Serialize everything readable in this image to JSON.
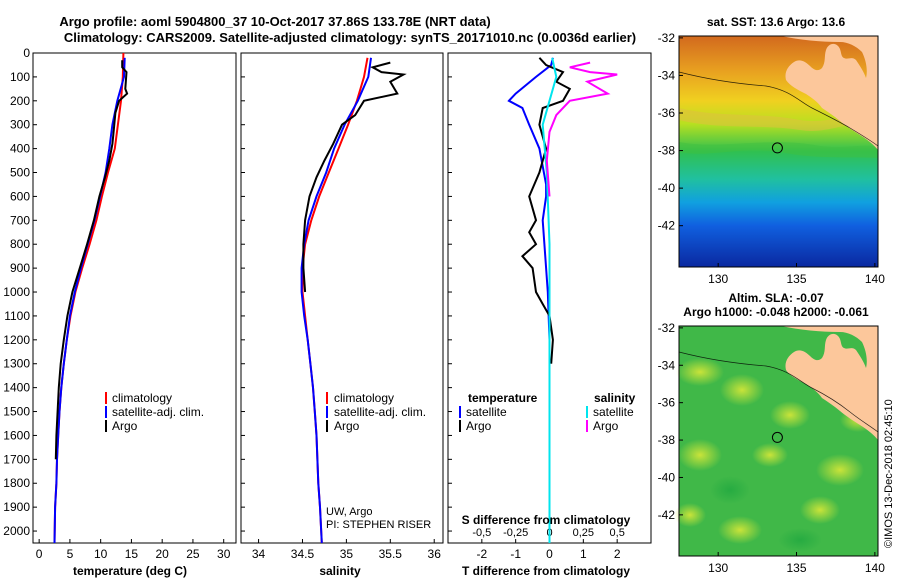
{
  "title": {
    "line1": "Argo profile: aoml 5904800_37 10-Oct-2017 37.86S 133.78E (NRT data)",
    "line2": "Climatology: CARS2009. Satellite-adjusted climatology: synTS_20171010.nc (0.0036d earlier)"
  },
  "colors": {
    "climatology": "#ff0000",
    "satellite": "#0000ff",
    "argo": "#000000",
    "satellite_s": "#00e5ee",
    "argo_s": "#ff00ff"
  },
  "chart_data": [
    {
      "type": "line",
      "id": "temperature",
      "xlabel": "temperature (deg C)",
      "ylabel": "",
      "xlim": [
        -1,
        32
      ],
      "ylim": [
        2050,
        0
      ],
      "xticks": [
        "0",
        "5",
        "10",
        "15",
        "20",
        "25",
        "30"
      ],
      "yticks": [
        "0",
        "100",
        "200",
        "300",
        "400",
        "500",
        "600",
        "700",
        "800",
        "900",
        "1000",
        "1100",
        "1200",
        "1300",
        "1400",
        "1500",
        "1600",
        "1700",
        "1800",
        "1900",
        "2000"
      ],
      "legend": [
        "climatology",
        "satellite-adj. clim.",
        "Argo"
      ],
      "series": [
        {
          "name": "climatology",
          "x": [
            13.7,
            13.6,
            13.3,
            12.8,
            12.3,
            11.2,
            10.2,
            9.3,
            8.2,
            7.0,
            5.9,
            5.1,
            4.5,
            4.0,
            3.6,
            3.3,
            3.1,
            2.9,
            2.8,
            2.6,
            2.5
          ],
          "y": [
            0,
            100,
            200,
            300,
            400,
            500,
            600,
            700,
            800,
            900,
            1000,
            1100,
            1200,
            1300,
            1400,
            1500,
            1600,
            1700,
            1800,
            1900,
            2050
          ]
        },
        {
          "name": "satellite-adj. clim.",
          "x": [
            13.9,
            13.8,
            12.7,
            11.9,
            11.4,
            10.8,
            9.9,
            9.0,
            7.9,
            6.8,
            5.8,
            5.0,
            4.5,
            4.0,
            3.6,
            3.3,
            3.1,
            2.9,
            2.8,
            2.6,
            2.5
          ],
          "y": [
            20,
            100,
            200,
            300,
            400,
            500,
            600,
            700,
            800,
            900,
            1000,
            1100,
            1200,
            1300,
            1400,
            1500,
            1600,
            1700,
            1800,
            1900,
            2050
          ]
        },
        {
          "name": "Argo",
          "x": [
            13.5,
            13.5,
            14.2,
            14.0,
            14.3,
            13.0,
            12.4,
            12.1,
            11.9,
            11.4,
            10.7,
            9.8,
            8.9,
            7.8,
            6.6,
            5.4,
            4.6,
            4.0,
            3.5,
            3.2,
            3.0,
            2.8,
            2.7
          ],
          "y": [
            30,
            60,
            80,
            150,
            170,
            200,
            250,
            330,
            380,
            450,
            520,
            600,
            700,
            800,
            900,
            1000,
            1100,
            1200,
            1300,
            1400,
            1500,
            1600,
            1700
          ]
        }
      ]
    },
    {
      "type": "line",
      "id": "salinity",
      "xlabel": "salinity",
      "ylabel": "",
      "xlim": [
        33.8,
        36.1
      ],
      "ylim": [
        2050,
        0
      ],
      "xticks": [
        "34",
        "34.5",
        "35",
        "35.5",
        "36"
      ],
      "legend": [
        "climatology",
        "satellite-adj. clim.",
        "Argo"
      ],
      "annotations": [
        "UW, Argo",
        "PI: STEPHEN RISER"
      ],
      "series": [
        {
          "name": "climatology",
          "x": [
            35.24,
            35.2,
            35.12,
            35.02,
            34.91,
            34.8,
            34.69,
            34.6,
            34.53,
            34.5,
            34.5,
            34.53,
            34.56,
            34.59,
            34.62,
            34.64,
            34.66,
            34.67,
            34.68,
            34.7,
            34.72
          ],
          "y": [
            20,
            100,
            200,
            300,
            400,
            500,
            600,
            700,
            800,
            900,
            1000,
            1100,
            1200,
            1300,
            1400,
            1500,
            1600,
            1700,
            1800,
            1900,
            2050
          ]
        },
        {
          "name": "satellite-adj. clim.",
          "x": [
            35.28,
            35.25,
            35.13,
            34.98,
            34.86,
            34.77,
            34.66,
            34.57,
            34.52,
            34.49,
            34.49,
            34.52,
            34.56,
            34.59,
            34.62,
            34.64,
            34.66,
            34.67,
            34.68,
            34.7,
            34.72
          ],
          "y": [
            20,
            100,
            200,
            300,
            400,
            500,
            600,
            700,
            800,
            900,
            1000,
            1100,
            1200,
            1300,
            1400,
            1500,
            1600,
            1700,
            1800,
            1900,
            2050
          ]
        },
        {
          "name": "Argo",
          "x": [
            35.5,
            35.3,
            35.4,
            35.65,
            35.5,
            35.58,
            35.2,
            35.1,
            34.95,
            34.85,
            34.75,
            34.66,
            34.58,
            34.53,
            34.51,
            34.51,
            34.53
          ],
          "y": [
            40,
            60,
            80,
            90,
            120,
            170,
            200,
            260,
            300,
            380,
            450,
            520,
            600,
            700,
            800,
            900,
            1000
          ]
        }
      ]
    },
    {
      "type": "line",
      "id": "differences",
      "xlabel": "T difference from climatology",
      "xlabel_top": "S difference from climatology",
      "xlim": [
        -3,
        3
      ],
      "ylim": [
        2050,
        0
      ],
      "xticks": [
        "-2",
        "-1",
        "0",
        "1",
        "2"
      ],
      "xticks_s": [
        "-0.5",
        "-0.25",
        "0",
        "0.25",
        "0.5"
      ],
      "legend_left_title": "temperature",
      "legend_left": [
        "satellite",
        "Argo"
      ],
      "legend_right_title": "salinity",
      "legend_right": [
        "satellite",
        "Argo"
      ],
      "series": [
        {
          "name": "T satellite",
          "x": [
            0.1,
            0.05,
            -0.4,
            -1.0,
            -1.2,
            -0.8,
            -0.6,
            -0.3,
            -0.1,
            -0.1,
            -0.2,
            -0.15,
            -0.1,
            -0.05,
            0,
            0,
            0,
            0
          ],
          "y": [
            20,
            50,
            100,
            170,
            200,
            230,
            300,
            400,
            550,
            600,
            700,
            800,
            900,
            1000,
            1200,
            1400,
            1700,
            2050
          ]
        },
        {
          "name": "T Argo",
          "x": [
            -0.3,
            -0.1,
            0.4,
            0.2,
            0.6,
            0.4,
            -0.2,
            -0.3,
            -0.1,
            -0.3,
            -0.6,
            -0.4,
            -0.6,
            -0.4,
            -0.8,
            -0.5,
            -0.4,
            -0.2,
            0,
            0.1,
            0.05
          ],
          "y": [
            20,
            50,
            80,
            120,
            150,
            200,
            230,
            300,
            400,
            500,
            600,
            700,
            750,
            800,
            850,
            900,
            1000,
            1050,
            1100,
            1200,
            1300
          ]
        },
        {
          "name": "S satellite",
          "x": [
            0.02,
            0.05,
            0,
            -0.05,
            -0.02,
            0,
            0,
            0,
            0,
            0
          ],
          "y": [
            20,
            100,
            200,
            300,
            500,
            800,
            1000,
            1200,
            1600,
            2050
          ]
        },
        {
          "name": "S Argo",
          "x": [
            0.3,
            0.15,
            0.3,
            0.5,
            0.28,
            0.43,
            0.15,
            0.05,
            0,
            -0.02,
            0
          ],
          "y": [
            40,
            60,
            80,
            90,
            120,
            170,
            200,
            260,
            330,
            450,
            600
          ]
        }
      ]
    },
    {
      "type": "heatmap",
      "id": "sst-map",
      "title": "sat. SST: 13.6 Argo: 13.6",
      "xlim": [
        127.5,
        140.2
      ],
      "ylim": [
        -44.2,
        -31.9
      ],
      "xticks": [
        "130",
        "135",
        "140"
      ],
      "yticks": [
        "-32",
        "-34",
        "-36",
        "-38",
        "-40",
        "-42"
      ],
      "marker": {
        "lon": 133.78,
        "lat": -37.86
      }
    },
    {
      "type": "heatmap",
      "id": "sla-map",
      "title": "Altim. SLA: -0.07",
      "subtitle": "Argo h1000: -0.048 h2000: -0.061",
      "xlim": [
        127.5,
        140.2
      ],
      "ylim": [
        -44.2,
        -31.9
      ],
      "xticks": [
        "130",
        "135",
        "140"
      ],
      "yticks": [
        "-32",
        "-34",
        "-36",
        "-38",
        "-40",
        "-42"
      ],
      "marker": {
        "lon": 133.78,
        "lat": -37.86
      }
    }
  ],
  "credit": "©IMOS 13-Dec-2018 02:45:10"
}
